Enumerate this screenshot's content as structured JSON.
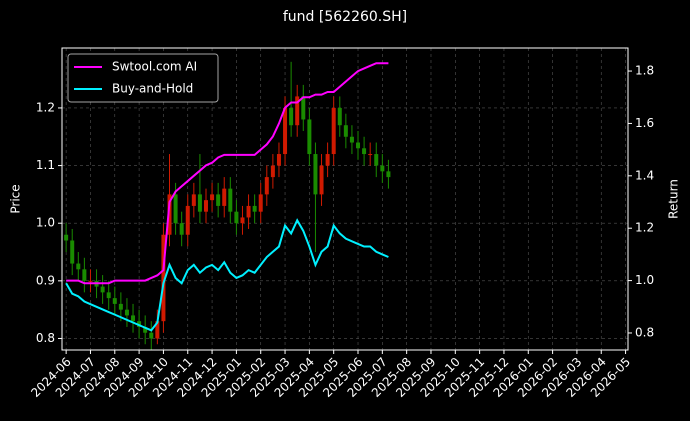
{
  "chart_data": {
    "type": "candlestick",
    "title": "fund [562260.SH]",
    "ylabel": "Price",
    "y2label": "Return",
    "x": [
      0,
      0.25,
      0.5,
      0.75,
      1,
      1.25,
      1.5,
      1.75,
      2,
      2.25,
      2.5,
      2.75,
      3,
      3.25,
      3.5,
      3.75,
      4,
      4.25,
      4.5,
      4.75,
      5,
      5.25,
      5.5,
      5.75,
      6,
      6.25,
      6.5,
      6.75,
      7,
      7.25,
      7.5,
      7.75,
      8,
      8.25,
      8.5,
      8.75,
      9,
      9.25,
      9.5,
      9.75,
      10,
      10.25,
      10.5,
      10.75,
      11,
      11.25,
      11.5,
      11.75,
      12,
      12.25,
      12.5,
      12.75,
      13,
      13.25
    ],
    "open": [
      0.98,
      0.97,
      0.93,
      0.92,
      0.9,
      0.9,
      0.89,
      0.88,
      0.87,
      0.86,
      0.85,
      0.84,
      0.83,
      0.82,
      0.81,
      0.8,
      0.83,
      0.98,
      1.05,
      1.0,
      0.98,
      1.03,
      1.05,
      1.02,
      1.04,
      1.05,
      1.03,
      1.06,
      1.02,
      1.0,
      1.01,
      1.03,
      1.02,
      1.05,
      1.08,
      1.1,
      1.12,
      1.2,
      1.17,
      1.22,
      1.18,
      1.12,
      1.05,
      1.1,
      1.12,
      1.2,
      1.17,
      1.15,
      1.14,
      1.13,
      1.12,
      1.12,
      1.1,
      1.09
    ],
    "high": [
      1.0,
      0.99,
      0.95,
      0.94,
      0.92,
      0.92,
      0.91,
      0.9,
      0.89,
      0.88,
      0.87,
      0.86,
      0.85,
      0.84,
      0.83,
      0.85,
      1.0,
      1.12,
      1.07,
      1.02,
      1.05,
      1.07,
      1.12,
      1.06,
      1.07,
      1.07,
      1.08,
      1.08,
      1.04,
      1.03,
      1.05,
      1.05,
      1.07,
      1.1,
      1.12,
      1.14,
      1.22,
      1.28,
      1.24,
      1.24,
      1.2,
      1.14,
      1.12,
      1.14,
      1.22,
      1.22,
      1.19,
      1.17,
      1.16,
      1.15,
      1.14,
      1.14,
      1.12,
      1.11
    ],
    "low": [
      0.95,
      0.91,
      0.9,
      0.88,
      0.88,
      0.87,
      0.86,
      0.85,
      0.84,
      0.83,
      0.82,
      0.81,
      0.8,
      0.79,
      0.78,
      0.79,
      0.81,
      0.96,
      0.98,
      0.96,
      0.96,
      1.01,
      1.0,
      1.0,
      1.02,
      1.01,
      1.01,
      1.0,
      0.98,
      0.98,
      0.99,
      1.0,
      1.0,
      1.03,
      1.06,
      1.08,
      1.1,
      1.15,
      1.15,
      1.16,
      1.1,
      0.95,
      1.03,
      1.08,
      1.1,
      1.15,
      1.13,
      1.12,
      1.11,
      1.1,
      1.1,
      1.08,
      1.07,
      1.06
    ],
    "close": [
      0.97,
      0.93,
      0.92,
      0.9,
      0.9,
      0.89,
      0.88,
      0.87,
      0.86,
      0.85,
      0.84,
      0.83,
      0.82,
      0.81,
      0.8,
      0.83,
      0.98,
      1.05,
      1.0,
      0.98,
      1.03,
      1.05,
      1.02,
      1.04,
      1.05,
      1.03,
      1.06,
      1.02,
      1.0,
      1.01,
      1.03,
      1.02,
      1.05,
      1.08,
      1.1,
      1.12,
      1.2,
      1.17,
      1.22,
      1.18,
      1.12,
      1.05,
      1.1,
      1.12,
      1.2,
      1.17,
      1.15,
      1.14,
      1.13,
      1.12,
      1.12,
      1.1,
      1.09,
      1.08
    ],
    "up_color": "#d01a00",
    "down_color": "#1a8c00",
    "series": [
      {
        "name": "Swtool.com AI",
        "color": "#ff00ff",
        "axis": "y2",
        "values": [
          1.0,
          1.0,
          1.0,
          0.99,
          0.99,
          0.99,
          0.99,
          0.99,
          1.0,
          1.0,
          1.0,
          1.0,
          1.0,
          1.0,
          1.01,
          1.02,
          1.04,
          1.3,
          1.34,
          1.36,
          1.38,
          1.4,
          1.42,
          1.44,
          1.45,
          1.47,
          1.48,
          1.48,
          1.48,
          1.48,
          1.48,
          1.48,
          1.5,
          1.52,
          1.55,
          1.6,
          1.66,
          1.68,
          1.68,
          1.7,
          1.7,
          1.71,
          1.71,
          1.72,
          1.72,
          1.74,
          1.76,
          1.78,
          1.8,
          1.81,
          1.82,
          1.83,
          1.83,
          1.83
        ]
      },
      {
        "name": "Buy-and-Hold",
        "color": "#00f0ff",
        "axis": "y2",
        "values": [
          0.99,
          0.95,
          0.94,
          0.92,
          0.91,
          0.9,
          0.89,
          0.88,
          0.87,
          0.86,
          0.85,
          0.84,
          0.83,
          0.82,
          0.81,
          0.84,
          0.99,
          1.06,
          1.01,
          0.99,
          1.04,
          1.06,
          1.03,
          1.05,
          1.06,
          1.04,
          1.07,
          1.03,
          1.01,
          1.02,
          1.04,
          1.03,
          1.06,
          1.09,
          1.11,
          1.13,
          1.21,
          1.18,
          1.23,
          1.19,
          1.13,
          1.06,
          1.11,
          1.13,
          1.21,
          1.18,
          1.16,
          1.15,
          1.14,
          1.13,
          1.13,
          1.11,
          1.1,
          1.09
        ]
      }
    ],
    "xlim": [
      -0.17,
      23.1
    ],
    "xticks": [
      {
        "value": 0,
        "label": "2024-06"
      },
      {
        "value": 1,
        "label": "2024-07"
      },
      {
        "value": 2,
        "label": "2024-08"
      },
      {
        "value": 3,
        "label": "2024-09"
      },
      {
        "value": 4,
        "label": "2024-10"
      },
      {
        "value": 5,
        "label": "2024-11"
      },
      {
        "value": 6,
        "label": "2024-12"
      },
      {
        "value": 7,
        "label": "2025-01"
      },
      {
        "value": 8,
        "label": "2025-02"
      },
      {
        "value": 9,
        "label": "2025-03"
      },
      {
        "value": 10,
        "label": "2025-04"
      },
      {
        "value": 11,
        "label": "2025-05"
      },
      {
        "value": 12,
        "label": "2025-06"
      },
      {
        "value": 13,
        "label": "2025-07"
      },
      {
        "value": 14,
        "label": "2025-08"
      },
      {
        "value": 15,
        "label": "2025-09"
      },
      {
        "value": 16,
        "label": "2025-10"
      },
      {
        "value": 17,
        "label": "2025-11"
      },
      {
        "value": 18,
        "label": "2025-12"
      },
      {
        "value": 19,
        "label": "2026-01"
      },
      {
        "value": 20,
        "label": "2026-02"
      },
      {
        "value": 21,
        "label": "2026-03"
      },
      {
        "value": 22,
        "label": "2026-04"
      },
      {
        "value": 23,
        "label": "2026-05"
      }
    ],
    "ylim": [
      0.78,
      1.304
    ],
    "yticks": [
      0.8,
      0.9,
      {
        "value": 1,
        "label": "1.0"
      },
      1.1,
      1.2
    ],
    "y2lim": [
      0.735,
      1.888
    ],
    "y2ticks": [
      0.8,
      {
        "value": 1,
        "label": "1.0"
      },
      1.2,
      1.4,
      1.6,
      1.8
    ],
    "grid": true,
    "legend": "upper left"
  }
}
